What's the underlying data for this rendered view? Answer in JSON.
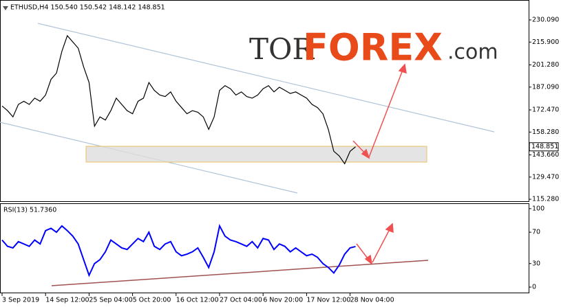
{
  "chart_data": [
    {
      "type": "line",
      "title": "ETHUSD,H4  150.540 150.542 148.142 148.851",
      "color": "#000000",
      "values": [
        175,
        172,
        168,
        176,
        178,
        176,
        180,
        178,
        182,
        192,
        196,
        210,
        220,
        216,
        212,
        200,
        190,
        162,
        168,
        166,
        172,
        180,
        176,
        172,
        170,
        178,
        180,
        190,
        185,
        182,
        181,
        184,
        178,
        174,
        170,
        172,
        171,
        168,
        160,
        168,
        185,
        188,
        186,
        182,
        184,
        181,
        180,
        182,
        186,
        188,
        184,
        187,
        185,
        183,
        184,
        182,
        180,
        176,
        174,
        170,
        160,
        146,
        143,
        138,
        146,
        148.851
      ],
      "current_price": 148.851,
      "ylim": [
        114,
        242.4
      ],
      "yticks": [
        {
          "value": 230.09,
          "label": "230.090"
        },
        {
          "value": 215.9,
          "label": "215.900"
        },
        {
          "value": 201.28,
          "label": "201.280"
        },
        {
          "value": 187.09,
          "label": "187.090"
        },
        {
          "value": 172.47,
          "label": "172.470"
        },
        {
          "value": 158.28,
          "label": "158.280"
        },
        {
          "value": 143.66,
          "label": "143.660"
        },
        {
          "value": 129.47,
          "label": "129.470"
        },
        {
          "value": 115.28,
          "label": "115.280"
        }
      ]
    },
    {
      "type": "line",
      "title": "RSI(13) 51.7360",
      "color": "#0000ff",
      "categories": [
        "3 Sep 2019",
        null,
        null,
        null,
        null,
        null,
        null,
        null,
        "14 Sep 12:00",
        null,
        null,
        null,
        null,
        null,
        null,
        null,
        "25 Sep 04:00",
        null,
        null,
        null,
        null,
        null,
        null,
        null,
        "5 Oct 20:00",
        null,
        null,
        null,
        null,
        null,
        null,
        null,
        "16 Oct 12:00",
        null,
        null,
        null,
        null,
        null,
        null,
        null,
        "27 Oct 04:00",
        null,
        null,
        null,
        null,
        null,
        null,
        null,
        "6 Nov 20:00",
        null,
        null,
        null,
        null,
        null,
        null,
        null,
        "17 Nov 12:00",
        null,
        null,
        null,
        null,
        null,
        null,
        null,
        "28 Nov 04:00",
        null
      ],
      "values": [
        60,
        52,
        50,
        58,
        55,
        52,
        60,
        55,
        72,
        75,
        70,
        78,
        72,
        65,
        55,
        35,
        15,
        30,
        35,
        45,
        60,
        55,
        50,
        48,
        55,
        62,
        58,
        70,
        52,
        48,
        55,
        58,
        45,
        40,
        42,
        45,
        50,
        38,
        25,
        45,
        78,
        65,
        60,
        58,
        55,
        52,
        58,
        50,
        62,
        60,
        48,
        55,
        52,
        45,
        50,
        45,
        40,
        42,
        38,
        30,
        25,
        18,
        28,
        42,
        50,
        51.736
      ],
      "ylim": [
        -7,
        106
      ],
      "yticks": [
        100,
        70,
        30,
        0
      ]
    }
  ],
  "logo": [
    "TOR",
    "FOREX",
    ".com"
  ]
}
